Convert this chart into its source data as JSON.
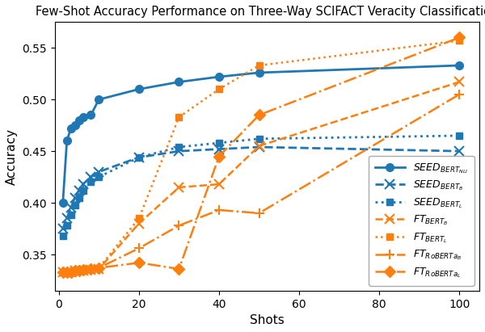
{
  "title": "Few-Shot Accuracy Performance on Three-Way SCIFACT Veracity Classification",
  "xlabel": "Shots",
  "ylabel": "Accuracy",
  "xlim": [
    -1,
    105
  ],
  "ylim": [
    0.315,
    0.575
  ],
  "xticks": [
    0,
    20,
    40,
    60,
    80,
    100
  ],
  "yticks": [
    0.35,
    0.4,
    0.45,
    0.5,
    0.55
  ],
  "series": [
    {
      "label": "SEED$_{BERT_{NLI}}$",
      "x": [
        1,
        2,
        3,
        4,
        5,
        6,
        8,
        10,
        20,
        30,
        40,
        50,
        100
      ],
      "y": [
        0.4,
        0.46,
        0.472,
        0.475,
        0.48,
        0.483,
        0.485,
        0.5,
        0.51,
        0.517,
        0.522,
        0.526,
        0.533
      ],
      "color": "#1f77b4",
      "linestyle": "-",
      "marker": "o",
      "markersize": 7,
      "linewidth": 2.0
    },
    {
      "label": "SEED$_{BERT_B}$",
      "x": [
        1,
        2,
        3,
        4,
        5,
        6,
        8,
        10,
        20,
        30,
        40,
        50,
        100
      ],
      "y": [
        0.375,
        0.385,
        0.395,
        0.405,
        0.412,
        0.418,
        0.425,
        0.43,
        0.444,
        0.45,
        0.452,
        0.454,
        0.45
      ],
      "color": "#1f77b4",
      "linestyle": "--",
      "marker": "x",
      "markersize": 8,
      "linewidth": 2.0
    },
    {
      "label": "SEED$_{BERT_L}$",
      "x": [
        1,
        2,
        3,
        4,
        5,
        6,
        8,
        10,
        20,
        30,
        40,
        50,
        100
      ],
      "y": [
        0.368,
        0.378,
        0.388,
        0.398,
        0.405,
        0.412,
        0.42,
        0.425,
        0.444,
        0.454,
        0.458,
        0.462,
        0.465
      ],
      "color": "#1f77b4",
      "linestyle": ":",
      "marker": "s",
      "markersize": 6,
      "linewidth": 2.0
    },
    {
      "label": "FT$_{BERT_B}$",
      "x": [
        1,
        2,
        3,
        4,
        5,
        6,
        8,
        10,
        20,
        30,
        40,
        50,
        100
      ],
      "y": [
        0.333,
        0.333,
        0.333,
        0.334,
        0.334,
        0.334,
        0.335,
        0.336,
        0.38,
        0.415,
        0.418,
        0.455,
        0.517
      ],
      "color": "#ff7f0e",
      "linestyle": "--",
      "marker": "x",
      "markersize": 8,
      "linewidth": 1.8
    },
    {
      "label": "FT$_{BERT_L}$",
      "x": [
        1,
        2,
        3,
        4,
        5,
        6,
        8,
        10,
        20,
        30,
        40,
        50,
        100
      ],
      "y": [
        0.333,
        0.333,
        0.333,
        0.334,
        0.334,
        0.335,
        0.336,
        0.337,
        0.385,
        0.483,
        0.51,
        0.533,
        0.557
      ],
      "color": "#ff7f0e",
      "linestyle": ":",
      "marker": "s",
      "markersize": 6,
      "linewidth": 1.8
    },
    {
      "label": "FT$_{RoBERTa_B}$",
      "x": [
        1,
        2,
        3,
        4,
        5,
        6,
        8,
        10,
        20,
        30,
        40,
        50,
        100
      ],
      "y": [
        0.333,
        0.333,
        0.333,
        0.334,
        0.334,
        0.335,
        0.336,
        0.337,
        0.356,
        0.378,
        0.393,
        0.39,
        0.505
      ],
      "color": "#ff7f0e",
      "linestyle": "-.",
      "marker": "+",
      "markersize": 9,
      "linewidth": 1.8
    },
    {
      "label": "FT$_{RoBERTa_L}$",
      "x": [
        1,
        2,
        3,
        4,
        5,
        6,
        8,
        10,
        20,
        30,
        40,
        50,
        100
      ],
      "y": [
        0.333,
        0.333,
        0.333,
        0.334,
        0.334,
        0.335,
        0.336,
        0.337,
        0.342,
        0.336,
        0.445,
        0.485,
        0.56
      ],
      "color": "#ff7f0e",
      "linestyle": "-.",
      "marker": "D",
      "markersize": 7,
      "linewidth": 1.8
    }
  ],
  "legend_loc": "lower right",
  "title_fontsize": 10.5,
  "label_fontsize": 11,
  "tick_fontsize": 10,
  "legend_fontsize": 9,
  "background_color": "#ffffff"
}
